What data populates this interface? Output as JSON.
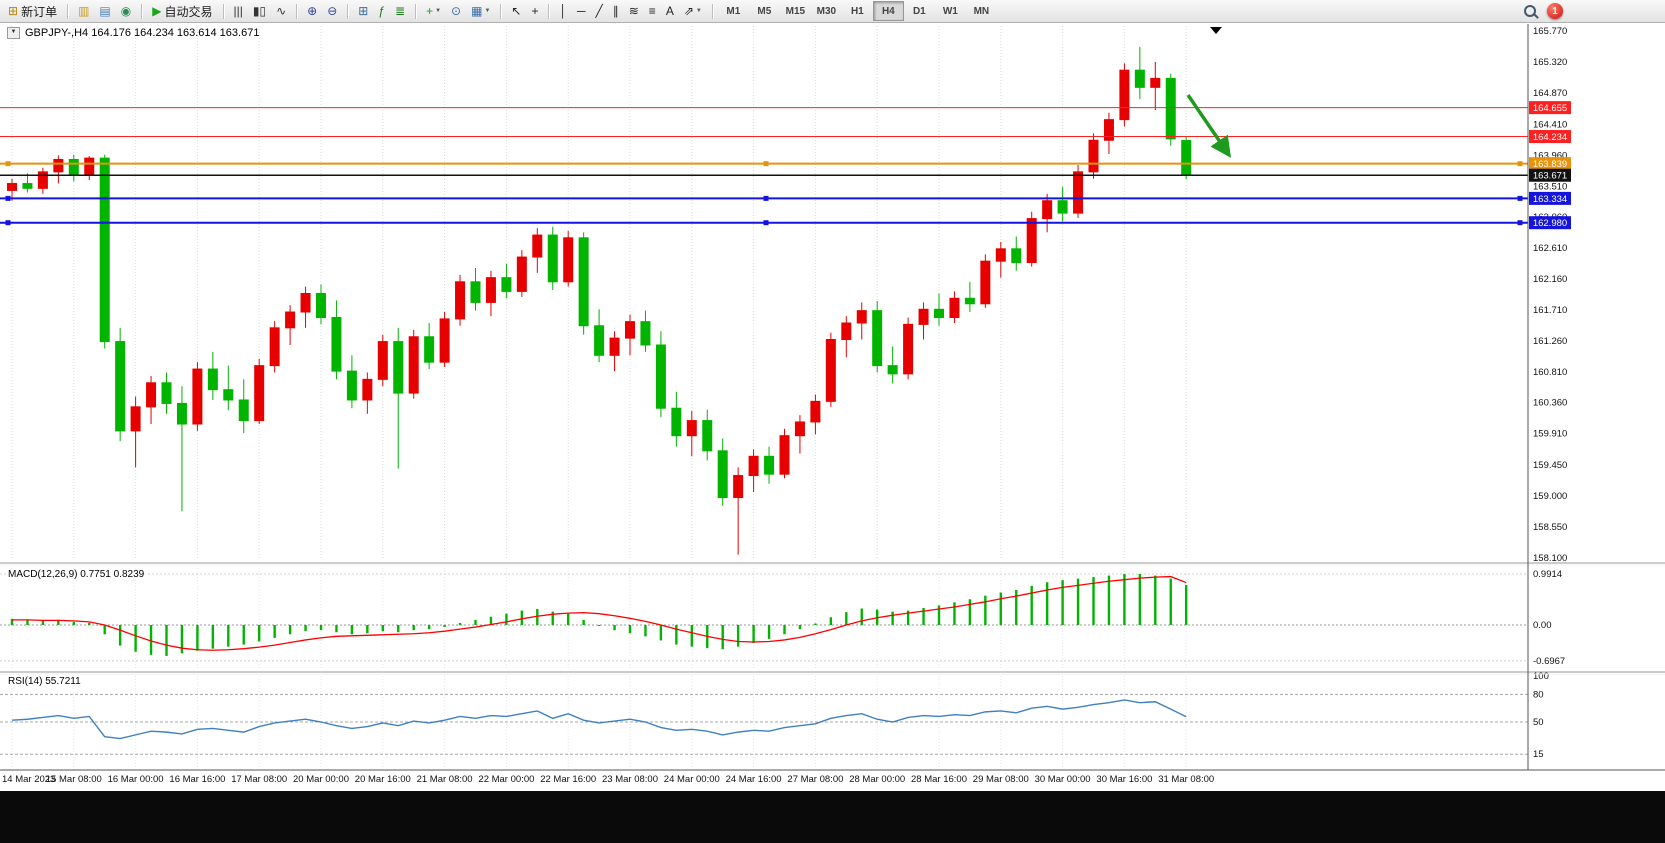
{
  "toolbar": {
    "items": [
      {
        "name": "new-order-button",
        "glyph": "⊞",
        "color": "#b8860b",
        "label": "新订单"
      },
      {
        "sep": true
      },
      {
        "name": "market-watch-icon",
        "glyph": "▥",
        "color": "#c89a1e"
      },
      {
        "name": "data-window-icon",
        "glyph": "▤",
        "color": "#4a7ebb"
      },
      {
        "name": "terminal-icon",
        "glyph": "◉",
        "color": "#2e8b57"
      },
      {
        "sep": true
      },
      {
        "name": "autotrade-button",
        "glyph": "▶",
        "color": "#18a818",
        "label": "自动交易"
      },
      {
        "sep": true
      },
      {
        "name": "bar-chart-icon",
        "glyph": "|||",
        "color": "#333333"
      },
      {
        "name": "candlestick-chart-icon",
        "glyph": "▮▯",
        "color": "#333333"
      },
      {
        "name": "line-chart-icon",
        "glyph": "∿",
        "color": "#333333"
      },
      {
        "sep": true
      },
      {
        "name": "zoom-in-icon",
        "glyph": "⊕",
        "color": "#334499"
      },
      {
        "name": "zoom-out-icon",
        "glyph": "⊖",
        "color": "#334499"
      },
      {
        "sep": true
      },
      {
        "name": "tile-windows-icon",
        "glyph": "⊞",
        "color": "#3a6ea5"
      },
      {
        "name": "indicators-icon",
        "glyph": "ƒ",
        "color": "#1a7a1a"
      },
      {
        "name": "indicator-windows-icon",
        "glyph": "≣",
        "color": "#1a7a1a"
      },
      {
        "sep": true
      },
      {
        "name": "add-chart-icon",
        "glyph": "+",
        "color": "#18a818",
        "dropdown": true
      },
      {
        "name": "period-icon",
        "glyph": "⊙",
        "color": "#3a6ea5"
      },
      {
        "name": "templates-icon",
        "glyph": "▦",
        "color": "#3a6ea5",
        "dropdown": true
      },
      {
        "sep": true
      },
      {
        "name": "cursor-icon",
        "glyph": "↖",
        "color": "#222222"
      },
      {
        "name": "crosshair-icon",
        "glyph": "+",
        "color": "#222222"
      },
      {
        "sep": true
      },
      {
        "name": "vertical-line-icon",
        "glyph": "│",
        "color": "#222222"
      },
      {
        "name": "horizontal-line-icon",
        "glyph": "─",
        "color": "#222222"
      },
      {
        "name": "trendline-icon",
        "glyph": "╱",
        "color": "#222222"
      },
      {
        "name": "channel-icon",
        "glyph": "∥",
        "color": "#222222"
      },
      {
        "name": "fibonacci-icon",
        "glyph": "≋",
        "color": "#222222"
      },
      {
        "name": "shapes-icon",
        "glyph": "≡",
        "color": "#222222"
      },
      {
        "name": "text-label-icon",
        "glyph": "A",
        "color": "#222222"
      },
      {
        "name": "arrows-icon",
        "glyph": "⇗",
        "color": "#222222",
        "dropdown": true
      },
      {
        "sep": true
      }
    ],
    "timeframes": [
      "M1",
      "M5",
      "M15",
      "M30",
      "H1",
      "H4",
      "D1",
      "W1",
      "MN"
    ],
    "active_timeframe": "H4",
    "caret_glyph": "▼",
    "notification_count": "1"
  },
  "chart": {
    "title": "GBPJPY-,H4 164.176 164.234 163.614 163.671",
    "symbol": "GBPJPY-",
    "period": "H4",
    "open": "164.176",
    "high": "164.234",
    "low": "163.614",
    "close": "163.671",
    "collapse_glyph": "▼",
    "scroll_marker_glyph": "▼"
  },
  "price_lines": [
    {
      "value": "164.655",
      "color": "#ff2020",
      "width": 1,
      "markers": false
    },
    {
      "value": "164.234",
      "color": "#ff2020",
      "width": 1,
      "markers": false
    },
    {
      "value": "163.839",
      "color": "#e8920a",
      "width": 2,
      "markers": true
    },
    {
      "value": "163.671",
      "color": "#111111",
      "width": 1.5,
      "markers": false
    },
    {
      "value": "163.334",
      "color": "#1414dc",
      "width": 2,
      "markers": true
    },
    {
      "value": "162.980",
      "color": "#1414dc",
      "width": 2,
      "markers": true
    }
  ],
  "macd": {
    "label": "MACD(12,26,9) 0.7751 0.8239"
  },
  "rsi": {
    "label": "RSI(14) 55.7211"
  },
  "annotations": [
    {
      "type": "arrow-down-right",
      "color": "#1e9b1e"
    }
  ],
  "chart_data": [
    {
      "type": "candlestick",
      "title": "GBPJPY-,H4",
      "timeframe": "H4",
      "bars_per_label": 4,
      "x_labels": [
        "14 Mar 2023",
        "15 Mar 08:00",
        "16 Mar 00:00",
        "16 Mar 16:00",
        "17 Mar 08:00",
        "20 Mar 00:00",
        "20 Mar 16:00",
        "21 Mar 08:00",
        "22 Mar 00:00",
        "22 Mar 16:00",
        "23 Mar 08:00",
        "24 Mar 00:00",
        "24 Mar 16:00",
        "27 Mar 08:00",
        "28 Mar 00:00",
        "28 Mar 16:00",
        "29 Mar 08:00",
        "30 Mar 00:00",
        "30 Mar 16:00",
        "31 Mar 08:00"
      ],
      "y_ticks": [
        "165.770",
        "165.320",
        "164.870",
        "164.410",
        "163.960",
        "163.510",
        "163.060",
        "162.610",
        "162.160",
        "161.710",
        "161.260",
        "160.810",
        "160.360",
        "159.910",
        "159.450",
        "159.000",
        "158.550",
        "158.100"
      ],
      "ylim": [
        158.1,
        165.77
      ],
      "up_color": "#e60000",
      "down_color": "#00b400",
      "ohlc": [
        [
          163.45,
          163.62,
          163.3,
          163.55
        ],
        [
          163.55,
          163.7,
          163.42,
          163.48
        ],
        [
          163.48,
          163.78,
          163.4,
          163.72
        ],
        [
          163.72,
          163.96,
          163.55,
          163.9
        ],
        [
          163.9,
          163.97,
          163.58,
          163.68
        ],
        [
          163.68,
          163.95,
          163.6,
          163.92
        ],
        [
          163.92,
          163.97,
          161.15,
          161.25
        ],
        [
          161.25,
          161.45,
          159.8,
          159.95
        ],
        [
          159.95,
          160.45,
          159.42,
          160.3
        ],
        [
          160.3,
          160.75,
          160.05,
          160.65
        ],
        [
          160.65,
          160.8,
          160.2,
          160.35
        ],
        [
          160.35,
          160.6,
          158.78,
          160.05
        ],
        [
          160.05,
          160.95,
          159.95,
          160.85
        ],
        [
          160.85,
          161.1,
          160.4,
          160.55
        ],
        [
          160.55,
          160.9,
          160.25,
          160.4
        ],
        [
          160.4,
          160.7,
          159.92,
          160.1
        ],
        [
          160.1,
          161.0,
          160.05,
          160.9
        ],
        [
          160.9,
          161.55,
          160.8,
          161.45
        ],
        [
          161.45,
          161.78,
          161.2,
          161.68
        ],
        [
          161.68,
          162.05,
          161.45,
          161.95
        ],
        [
          161.95,
          162.08,
          161.5,
          161.6
        ],
        [
          161.6,
          161.85,
          160.7,
          160.82
        ],
        [
          160.82,
          161.05,
          160.28,
          160.4
        ],
        [
          160.4,
          160.8,
          160.2,
          160.7
        ],
        [
          160.7,
          161.35,
          160.6,
          161.25
        ],
        [
          161.25,
          161.45,
          159.4,
          160.5
        ],
        [
          160.5,
          161.42,
          160.42,
          161.32
        ],
        [
          161.32,
          161.52,
          160.85,
          160.95
        ],
        [
          160.95,
          161.68,
          160.88,
          161.58
        ],
        [
          161.58,
          162.22,
          161.48,
          162.12
        ],
        [
          162.12,
          162.32,
          161.7,
          161.82
        ],
        [
          161.82,
          162.28,
          161.62,
          162.18
        ],
        [
          162.18,
          162.38,
          161.88,
          161.98
        ],
        [
          161.98,
          162.58,
          161.9,
          162.48
        ],
        [
          162.48,
          162.9,
          162.25,
          162.8
        ],
        [
          162.8,
          162.92,
          162.0,
          162.12
        ],
        [
          162.12,
          162.86,
          162.05,
          162.76
        ],
        [
          162.76,
          162.84,
          161.35,
          161.48
        ],
        [
          161.48,
          161.72,
          160.95,
          161.05
        ],
        [
          161.05,
          161.4,
          160.82,
          161.3
        ],
        [
          161.3,
          161.64,
          161.05,
          161.54
        ],
        [
          161.54,
          161.7,
          161.1,
          161.2
        ],
        [
          161.2,
          161.4,
          160.15,
          160.28
        ],
        [
          160.28,
          160.52,
          159.72,
          159.88
        ],
        [
          159.88,
          160.24,
          159.58,
          160.1
        ],
        [
          160.1,
          160.26,
          159.52,
          159.66
        ],
        [
          159.66,
          159.84,
          158.86,
          158.98
        ],
        [
          158.98,
          159.42,
          158.15,
          159.3
        ],
        [
          159.3,
          159.68,
          159.06,
          159.58
        ],
        [
          159.58,
          159.72,
          159.18,
          159.32
        ],
        [
          159.32,
          159.98,
          159.26,
          159.88
        ],
        [
          159.88,
          160.18,
          159.62,
          160.08
        ],
        [
          160.08,
          160.48,
          159.9,
          160.38
        ],
        [
          160.38,
          161.38,
          160.3,
          161.28
        ],
        [
          161.28,
          161.62,
          161.02,
          161.52
        ],
        [
          161.52,
          161.82,
          161.28,
          161.7
        ],
        [
          161.7,
          161.84,
          160.8,
          160.9
        ],
        [
          160.9,
          161.18,
          160.64,
          160.78
        ],
        [
          160.78,
          161.6,
          160.7,
          161.5
        ],
        [
          161.5,
          161.82,
          161.28,
          161.72
        ],
        [
          161.72,
          161.95,
          161.48,
          161.6
        ],
        [
          161.6,
          161.98,
          161.52,
          161.88
        ],
        [
          161.88,
          162.12,
          161.68,
          161.8
        ],
        [
          161.8,
          162.52,
          161.74,
          162.42
        ],
        [
          162.42,
          162.7,
          162.18,
          162.6
        ],
        [
          162.6,
          162.78,
          162.28,
          162.4
        ],
        [
          162.4,
          163.14,
          162.34,
          163.04
        ],
        [
          163.04,
          163.4,
          162.84,
          163.3
        ],
        [
          163.3,
          163.5,
          163.0,
          163.12
        ],
        [
          163.12,
          163.82,
          163.05,
          163.72
        ],
        [
          163.72,
          164.28,
          163.62,
          164.18
        ],
        [
          164.18,
          164.58,
          163.98,
          164.48
        ],
        [
          164.48,
          165.3,
          164.38,
          165.2
        ],
        [
          165.2,
          165.54,
          164.78,
          164.95
        ],
        [
          164.95,
          165.32,
          164.62,
          165.08
        ],
        [
          165.08,
          165.15,
          164.1,
          164.2
        ],
        [
          164.176,
          164.234,
          163.614,
          163.671
        ]
      ]
    },
    {
      "type": "macd",
      "label": "MACD(12,26,9) 0.7751 0.8239",
      "axis": [
        "0.9914",
        "0.00",
        "-0.6967"
      ],
      "ylim": [
        -0.6967,
        0.9914
      ],
      "hist_color": "#00b400",
      "signal_color": "#ff0000",
      "histogram": [
        0.12,
        0.1,
        0.09,
        0.1,
        0.06,
        0.04,
        -0.18,
        -0.4,
        -0.52,
        -0.58,
        -0.6,
        -0.55,
        -0.5,
        -0.46,
        -0.42,
        -0.38,
        -0.32,
        -0.25,
        -0.18,
        -0.12,
        -0.1,
        -0.14,
        -0.18,
        -0.16,
        -0.12,
        -0.14,
        -0.1,
        -0.08,
        -0.04,
        0.04,
        0.1,
        0.16,
        0.22,
        0.28,
        0.31,
        0.26,
        0.22,
        0.1,
        -0.02,
        -0.1,
        -0.16,
        -0.22,
        -0.3,
        -0.38,
        -0.42,
        -0.45,
        -0.47,
        -0.42,
        -0.35,
        -0.27,
        -0.18,
        -0.08,
        0.03,
        0.15,
        0.25,
        0.32,
        0.3,
        0.26,
        0.28,
        0.33,
        0.38,
        0.44,
        0.5,
        0.57,
        0.63,
        0.68,
        0.76,
        0.83,
        0.87,
        0.9,
        0.93,
        0.96,
        0.99,
        0.99,
        0.96,
        0.9,
        0.7751
      ],
      "signal": [
        0.1,
        0.1,
        0.09,
        0.09,
        0.08,
        0.06,
        0.0,
        -0.1,
        -0.21,
        -0.31,
        -0.39,
        -0.45,
        -0.48,
        -0.49,
        -0.48,
        -0.46,
        -0.43,
        -0.39,
        -0.34,
        -0.29,
        -0.25,
        -0.22,
        -0.21,
        -0.2,
        -0.19,
        -0.18,
        -0.17,
        -0.15,
        -0.12,
        -0.08,
        -0.04,
        0.01,
        0.06,
        0.12,
        0.17,
        0.21,
        0.23,
        0.24,
        0.22,
        0.18,
        0.13,
        0.07,
        0.0,
        -0.08,
        -0.15,
        -0.22,
        -0.28,
        -0.32,
        -0.33,
        -0.32,
        -0.29,
        -0.24,
        -0.17,
        -0.09,
        0.0,
        0.08,
        0.14,
        0.19,
        0.23,
        0.27,
        0.31,
        0.35,
        0.4,
        0.45,
        0.51,
        0.56,
        0.62,
        0.68,
        0.73,
        0.77,
        0.81,
        0.85,
        0.88,
        0.91,
        0.93,
        0.94,
        0.8239
      ]
    },
    {
      "type": "rsi",
      "label": "RSI(14) 55.7211",
      "axis": [
        "100",
        "80",
        "50",
        "15"
      ],
      "levels": [
        80,
        50,
        15
      ],
      "ylim": [
        0,
        100
      ],
      "line_color": "#4080c0",
      "values": [
        52,
        53,
        55,
        57,
        54,
        56,
        34,
        32,
        36,
        40,
        39,
        37,
        42,
        43,
        41,
        39,
        45,
        49,
        51,
        53,
        50,
        46,
        43,
        45,
        49,
        46,
        51,
        49,
        52,
        56,
        54,
        57,
        56,
        59,
        62,
        54,
        59,
        52,
        49,
        51,
        53,
        50,
        44,
        41,
        42,
        40,
        36,
        39,
        41,
        40,
        44,
        46,
        48,
        54,
        57,
        59,
        53,
        50,
        55,
        57,
        56,
        58,
        57,
        61,
        62,
        60,
        65,
        67,
        64,
        66,
        69,
        71,
        74,
        71,
        72,
        64,
        55.7211
      ]
    }
  ]
}
